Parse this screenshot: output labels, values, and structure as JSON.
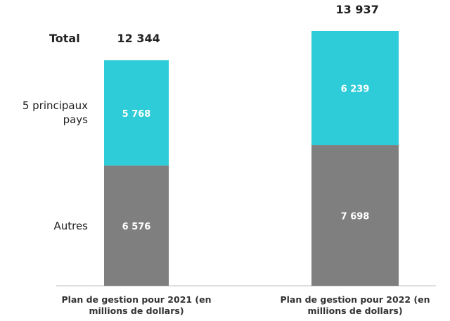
{
  "chart_data": {
    "type": "stacked-bar",
    "categories": [
      "Plan de gestion pour 2021 (en millions de dollars)",
      "Plan de gestion pour 2022 (en millions de dollars)"
    ],
    "series": [
      {
        "name": "Autres",
        "color": "#7f7f7f",
        "values": [
          6576,
          7698
        ],
        "value_labels": [
          "6 576",
          "7 698"
        ]
      },
      {
        "name": "5 principaux pays",
        "color": "#2ecbd8",
        "values": [
          5768,
          6239
        ],
        "value_labels": [
          "5 768",
          "6 239"
        ]
      }
    ],
    "total_label": "Total",
    "totals": [
      12344,
      13937
    ],
    "total_labels": [
      "12 344",
      "13 937"
    ]
  }
}
